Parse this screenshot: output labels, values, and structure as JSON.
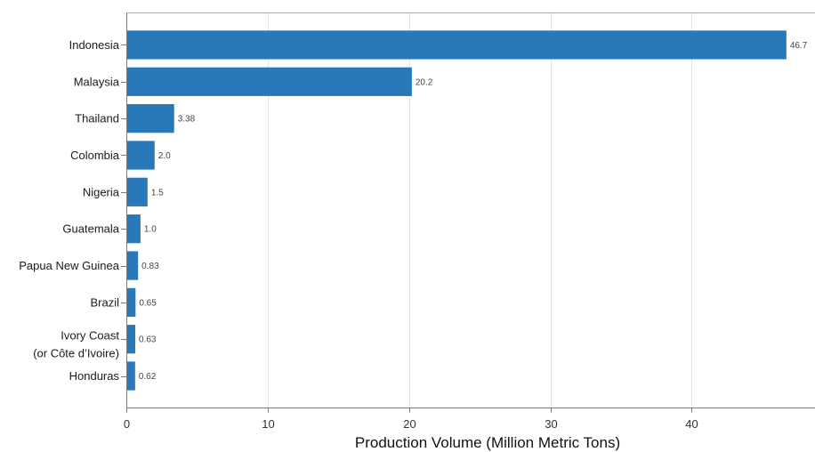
{
  "chart_data": {
    "type": "bar",
    "orientation": "horizontal",
    "categories": [
      "Indonesia",
      "Malaysia",
      "Thailand",
      "Colombia",
      "Nigeria",
      "Guatemala",
      "Papua New Guinea",
      "Brazil",
      "Ivory Coast\n(or Côte d’Ivoire)",
      "Honduras"
    ],
    "values": [
      46.7,
      20.2,
      3.38,
      2.0,
      1.5,
      1.0,
      0.83,
      0.65,
      0.63,
      0.62
    ],
    "value_labels": [
      "46.7",
      "20.2",
      "3.38",
      "2.0",
      "1.5",
      "1.0",
      "0.83",
      "0.65",
      "0.63",
      "0.62"
    ],
    "xlabel": "Production Volume (Million Metric Tons)",
    "ylabel": "",
    "xlim": [
      0,
      48.6
    ],
    "xticks": [
      0,
      10,
      20,
      30,
      40
    ],
    "grid": true,
    "colors": {
      "bar": "#2978b9",
      "grid": "#e3e3e3",
      "axis": "#7a7a7a",
      "frame_top": "#a8a8a8"
    }
  }
}
